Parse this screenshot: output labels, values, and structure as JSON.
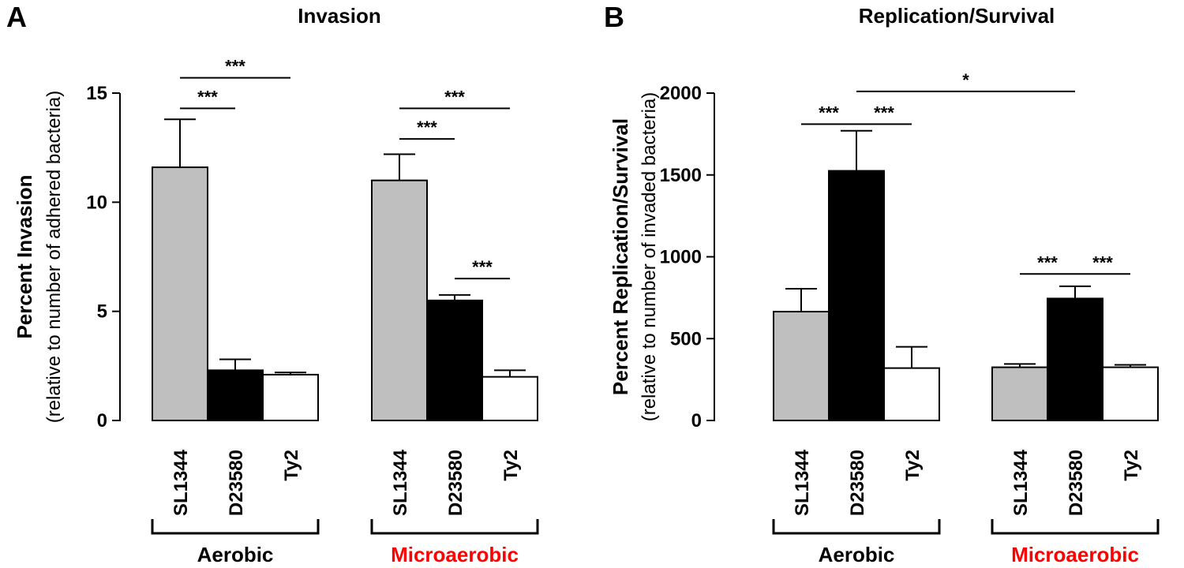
{
  "colors": {
    "SL1344": "#bfbfbf",
    "D23580": "#000000",
    "Ty2": "#ffffff",
    "aerobic_label": "#000000",
    "microaerobic_label": "#ff0000"
  },
  "chart_data": [
    {
      "type": "bar",
      "panel": "A",
      "title": "Invasion",
      "ylabel": "Percent Invasion",
      "ylabel_sub": "(relative to number of adhered bacteria)",
      "ylim": [
        0,
        15
      ],
      "yticks": [
        0,
        5,
        10,
        15
      ],
      "groups": [
        {
          "label": "Aerobic",
          "label_color": "#000000",
          "bars": [
            {
              "category": "SL1344",
              "value": 11.6,
              "error": 2.2
            },
            {
              "category": "D23580",
              "value": 2.3,
              "error": 0.5
            },
            {
              "category": "Ty2",
              "value": 2.1,
              "error": 0.1
            }
          ]
        },
        {
          "label": "Microaerobic",
          "label_color": "#ff0000",
          "bars": [
            {
              "category": "SL1344",
              "value": 11.0,
              "error": 1.2
            },
            {
              "category": "D23580",
              "value": 5.5,
              "error": 0.25
            },
            {
              "category": "Ty2",
              "value": 2.0,
              "error": 0.3
            }
          ]
        }
      ],
      "significance": [
        {
          "label": "***",
          "from": [
            0,
            0
          ],
          "to": [
            0,
            1
          ],
          "y": 14.3
        },
        {
          "label": "***",
          "from": [
            0,
            0
          ],
          "to": [
            0,
            2
          ],
          "y": 15.7
        },
        {
          "label": "***",
          "from": [
            1,
            0
          ],
          "to": [
            1,
            1
          ],
          "y": 12.9
        },
        {
          "label": "***",
          "from": [
            1,
            0
          ],
          "to": [
            1,
            2
          ],
          "y": 14.3
        },
        {
          "label": "***",
          "from": [
            1,
            1
          ],
          "to": [
            1,
            2
          ],
          "y": 6.5
        }
      ]
    },
    {
      "type": "bar",
      "panel": "B",
      "title": "Replication/Survival",
      "ylabel": "Percent Replication/Survival",
      "ylabel_sub": "(relative to number of invaded bacteria)",
      "ylim": [
        0,
        2000
      ],
      "yticks": [
        0,
        500,
        1000,
        1500,
        2000
      ],
      "groups": [
        {
          "label": "Aerobic",
          "label_color": "#000000",
          "bars": [
            {
              "category": "SL1344",
              "value": 665,
              "error": 140
            },
            {
              "category": "D23580",
              "value": 1525,
              "error": 245
            },
            {
              "category": "Ty2",
              "value": 320,
              "error": 130
            }
          ]
        },
        {
          "label": "Microaerobic",
          "label_color": "#ff0000",
          "bars": [
            {
              "category": "SL1344",
              "value": 325,
              "error": 20
            },
            {
              "category": "D23580",
              "value": 745,
              "error": 75
            },
            {
              "category": "Ty2",
              "value": 325,
              "error": 15
            }
          ]
        }
      ],
      "significance": [
        {
          "label": "*",
          "from": [
            0,
            1
          ],
          "to": [
            1,
            1
          ],
          "y": 2010
        },
        {
          "label": "***",
          "from": [
            0,
            0
          ],
          "to": [
            0,
            1
          ],
          "y": 1810
        },
        {
          "label": "***",
          "from": [
            0,
            1
          ],
          "to": [
            0,
            2
          ],
          "y": 1810
        },
        {
          "label": "***",
          "from": [
            1,
            0
          ],
          "to": [
            1,
            1
          ],
          "y": 895
        },
        {
          "label": "***",
          "from": [
            1,
            1
          ],
          "to": [
            1,
            2
          ],
          "y": 895
        }
      ]
    }
  ]
}
